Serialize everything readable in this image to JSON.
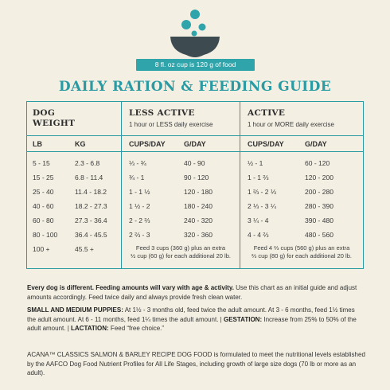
{
  "header": {
    "cup_label": "8 fl. oz cup is 120 g of food",
    "title": "DAILY RATION & FEEDING GUIDE"
  },
  "colors": {
    "accent": "#2a9aa3",
    "bowl": "#3d4a50",
    "background": "#f3efe3"
  },
  "icons": [
    "food-bowl-icon"
  ],
  "table": {
    "dog_weight_line1": "DOG",
    "dog_weight_line2": "WEIGHT",
    "less_active_title": "LESS ACTIVE",
    "less_active_sub": "1 hour or LESS daily exercise",
    "active_title": "ACTIVE",
    "active_sub": "1 hour or MORE daily exercise",
    "col_lb": "LB",
    "col_kg": "KG",
    "col_cups_less": "CUPS/DAY",
    "col_g_less": "G/DAY",
    "col_cups_active": "CUPS/DAY",
    "col_g_active": "G/DAY",
    "rows": [
      {
        "lb": "5 - 15",
        "kg": "2.3 - 6.8",
        "cups_less": "⅓ - ¾",
        "g_less": "40 - 90",
        "cups_active": "½ - 1",
        "g_active": "60 - 120"
      },
      {
        "lb": "15 - 25",
        "kg": "6.8 - 11.4",
        "cups_less": "¾ - 1",
        "g_less": "90 - 120",
        "cups_active": "1 - 1 ⅔",
        "g_active": "120 - 200"
      },
      {
        "lb": "25 - 40",
        "kg": "11.4 - 18.2",
        "cups_less": "1 - 1 ½",
        "g_less": "120 - 180",
        "cups_active": "1 ⅔ - 2 ⅓",
        "g_active": "200 - 280"
      },
      {
        "lb": "40 - 60",
        "kg": "18.2 - 27.3",
        "cups_less": "1 ½ - 2",
        "g_less": "180 - 240",
        "cups_active": "2 ⅓ - 3 ¼",
        "g_active": "280 - 390"
      },
      {
        "lb": "60 - 80",
        "kg": "27.3 - 36.4",
        "cups_less": "2 - 2 ⅔",
        "g_less": "240 - 320",
        "cups_active": "3 ¼ - 4",
        "g_active": "390 - 480"
      },
      {
        "lb": "80 - 100",
        "kg": "36.4 - 45.5",
        "cups_less": "2 ⅔ - 3",
        "g_less": "320 - 360",
        "cups_active": "4 - 4 ⅔",
        "g_active": "480 - 560"
      }
    ],
    "last_lb": "100 +",
    "last_kg": "45.5 +",
    "note_less_1": "Feed 3 cups (360 g) plus an extra",
    "note_less_2": "½ cup (60 g) for each additional 20 lb.",
    "note_active_1": "Feed 4 ⅔ cups (560 g) plus an extra",
    "note_active_2": "⅔ cup (80 g) for each additional 20 lb."
  },
  "text": {
    "p1_bold": "Every dog is different. Feeding amounts will vary with age & activity.",
    "p1_rest": " Use this chart as an initial guide and adjust amounts accordingly. Feed twice daily and always provide fresh clean water.",
    "p2_bold1": "SMALL AND MEDIUM PUPPIES:",
    "p2_rest1": " At 1½ - 3 months old, feed twice the adult amount. At 3 - 6 months, feed 1½ times the adult amount. At 6 - 11 months, feed 1¼ times the adult amount.  |  ",
    "p2_bold2": "GESTATION:",
    "p2_rest2": " Increase from 25% to 50% of the adult amount.  |  ",
    "p2_bold3": "LACTATION:",
    "p2_rest3": " Feed “free choice.”",
    "p3": "ACANA™ CLASSICS SALMON & BARLEY RECIPE DOG FOOD is formulated to meet the nutritional levels established by the AAFCO Dog Food Nutrient Profiles for All Life Stages, including growth of large size dogs (70 lb or more as an adult)."
  }
}
